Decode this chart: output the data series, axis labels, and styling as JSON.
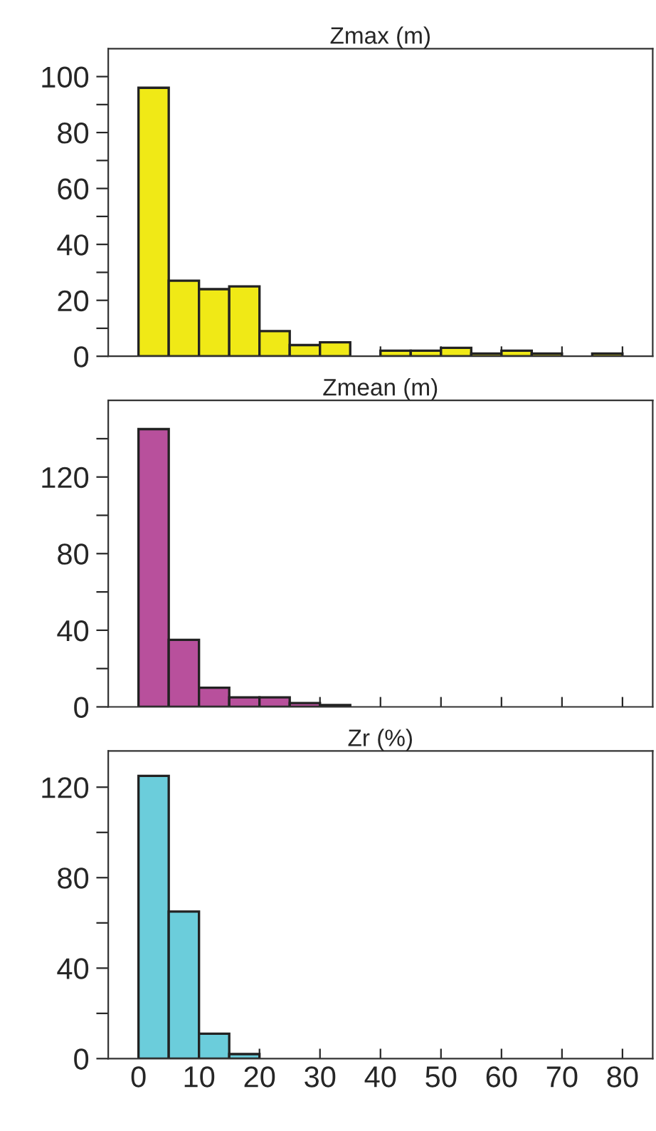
{
  "chart_data": [
    {
      "type": "histogram",
      "title": "Zmax (m)",
      "bins": [
        0,
        5,
        10,
        15,
        20,
        25,
        30,
        35,
        40,
        45,
        50,
        55,
        60,
        65,
        70,
        75,
        80
      ],
      "values": [
        96,
        27,
        24,
        25,
        9,
        4,
        5,
        0,
        2,
        2,
        3,
        1,
        2,
        1,
        0,
        1
      ],
      "color": "#f0e916",
      "xlim": [
        -5,
        85
      ],
      "ylim": [
        0,
        110
      ],
      "xticks": [
        0,
        10,
        20,
        30,
        40,
        50,
        60,
        70,
        80
      ],
      "yticks": [
        0,
        {
          "value": 10,
          "label": null
        },
        20,
        {
          "value": 30,
          "label": null
        },
        40,
        {
          "value": 50,
          "label": null
        },
        60,
        {
          "value": 70,
          "label": null
        },
        80,
        {
          "value": 90,
          "label": null
        },
        100
      ],
      "tick_labels": "y",
      "grid": false
    },
    {
      "type": "histogram",
      "title": "Zmean (m)",
      "bins": [
        0,
        5,
        10,
        15,
        20,
        25,
        30,
        35,
        40,
        45,
        50,
        55,
        60,
        65,
        70,
        75,
        80
      ],
      "values": [
        145,
        35,
        10,
        5,
        5,
        2,
        1,
        0,
        0,
        0,
        0,
        0,
        0,
        0,
        0,
        0
      ],
      "color": "#b8509c",
      "xlim": [
        -5,
        85
      ],
      "ylim": [
        0,
        160
      ],
      "xticks": [
        0,
        10,
        20,
        30,
        40,
        50,
        60,
        70,
        80
      ],
      "yticks": [
        0,
        {
          "value": 20,
          "label": null
        },
        40,
        {
          "value": 60,
          "label": null
        },
        80,
        {
          "value": 100,
          "label": null
        },
        120,
        {
          "value": 140,
          "label": null
        }
      ],
      "tick_labels": "y",
      "grid": false
    },
    {
      "type": "histogram",
      "title": "Zr (%)",
      "bins": [
        0,
        5,
        10,
        15,
        20,
        25,
        30,
        35,
        40,
        45,
        50,
        55,
        60,
        65,
        70,
        75,
        80
      ],
      "values": [
        125,
        65,
        11,
        2,
        0,
        0,
        0,
        0,
        0,
        0,
        0,
        0,
        0,
        0,
        0,
        0
      ],
      "color": "#6bcddb",
      "xlim": [
        -5,
        85
      ],
      "ylim": [
        0,
        136
      ],
      "xticks": [
        0,
        10,
        20,
        30,
        40,
        50,
        60,
        70,
        80
      ],
      "yticks": [
        0,
        {
          "value": 20,
          "label": null
        },
        40,
        {
          "value": 60,
          "label": null
        },
        80,
        {
          "value": 100,
          "label": null
        },
        120
      ],
      "grid": false
    }
  ]
}
